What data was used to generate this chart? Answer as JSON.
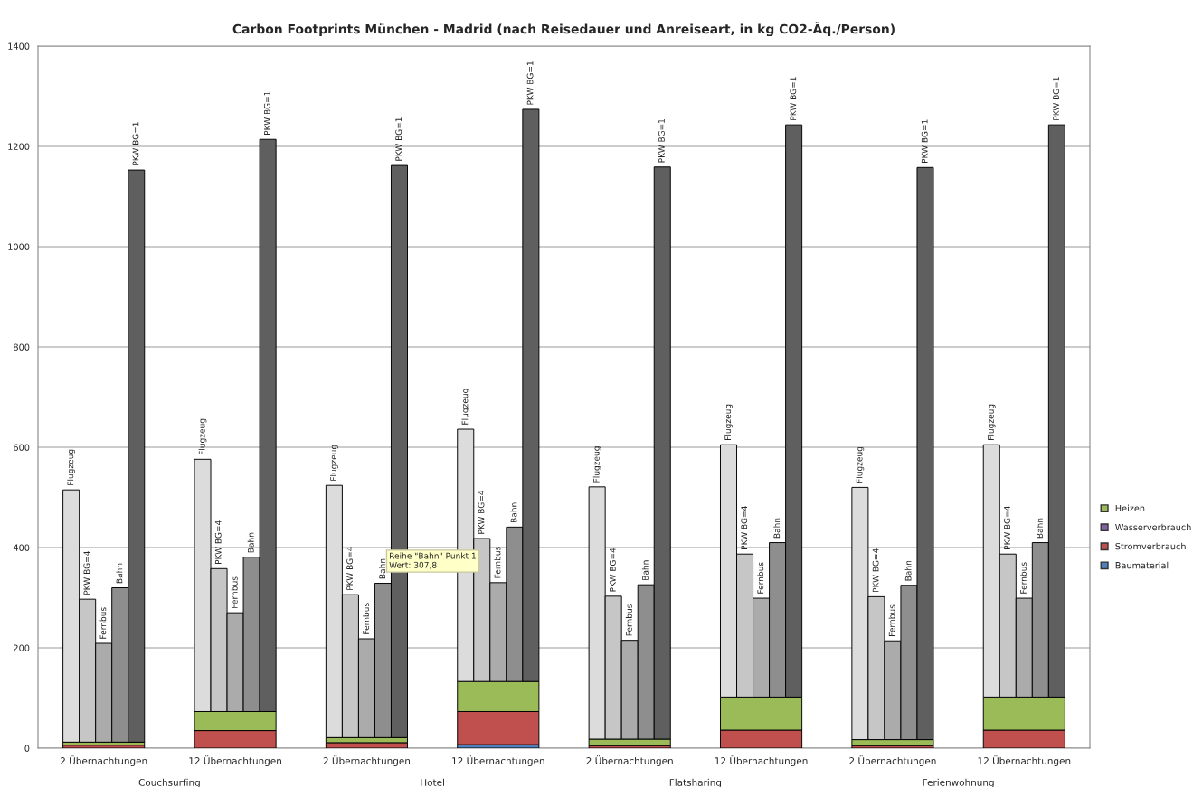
{
  "chart_data": {
    "type": "bar",
    "title": "Carbon Footprints München - Madrid (nach Reisedauer und Anreiseart, in kg CO2-Äq./Person)",
    "categories": [
      "2 Übernachtungen",
      "12 Übernachtungen",
      "2 Übernachtungen",
      "12 Übernachtungen",
      "2 Übernachtungen",
      "12 Übernachtungen",
      "2 Übernachtungen",
      "12 Übernachtungen"
    ],
    "series": [
      {
        "name": "Baumaterial",
        "color": "#4f81bd",
        "values": [
          0,
          0,
          0,
          7,
          0,
          0,
          0,
          0
        ]
      },
      {
        "name": "Stromverbrauch",
        "color": "#c0504d",
        "values": [
          6,
          35,
          11,
          66,
          5,
          36,
          5,
          36
        ],
        "base": [
          0,
          0,
          0,
          7,
          0,
          0,
          0,
          0
        ]
      },
      {
        "name": "Wasserverbrauch",
        "color": "#8064a2",
        "values": [
          0,
          0,
          0,
          0,
          0,
          0,
          0,
          0
        ]
      },
      {
        "name": "Heizen",
        "color": "#9bbb59",
        "values": [
          6,
          38,
          10,
          60,
          13,
          66,
          12,
          66
        ],
        "base": [
          6,
          35,
          11,
          73,
          5,
          36,
          5,
          36
        ]
      },
      {
        "type": "bar",
        "name": "Flugzeug",
        "color": "#dcdcdc",
        "values": [
          503,
          503,
          503,
          503,
          503,
          503,
          503,
          503
        ],
        "base": [
          12,
          73,
          21,
          133,
          18,
          102,
          17,
          102
        ]
      },
      {
        "type": "bar",
        "name": "PKW BG=4",
        "color": "#c6c6c6",
        "values": [
          285,
          285,
          285,
          285,
          285,
          285,
          285,
          285
        ],
        "base": [
          12,
          73,
          21,
          133,
          18,
          102,
          17,
          102
        ]
      },
      {
        "type": "bar",
        "name": "Fernbus",
        "color": "#ababab",
        "values": [
          197,
          197,
          197,
          197,
          197,
          197,
          197,
          197
        ],
        "base": [
          12,
          73,
          21,
          133,
          18,
          102,
          17,
          102
        ]
      },
      {
        "type": "bar",
        "name": "Bahn",
        "color": "#8e8e8e",
        "values": [
          307.8,
          307.8,
          307.8,
          307.8,
          307.8,
          307.8,
          307.8,
          307.8
        ],
        "base": [
          12,
          73,
          21,
          133,
          18,
          102,
          17,
          102
        ]
      },
      {
        "type": "bar",
        "name": "PKW BG=1",
        "color": "#5f5f5f",
        "values": [
          1141,
          1141,
          1141,
          1141,
          1141,
          1141,
          1141,
          1141
        ],
        "base": [
          12,
          73,
          21,
          133,
          18,
          102,
          17,
          102
        ]
      }
    ],
    "annotations": [
      "Couchsurfing",
      "Hotel",
      "Flatsharing",
      "Ferienwohnung",
      "Reihe \"Bahn\" Punkt 1\nWert: 307,8"
    ],
    "ylim": [
      0,
      1400
    ],
    "yticks": [
      0,
      200,
      400,
      600,
      800,
      1000,
      1200,
      1400
    ],
    "grid": "y",
    "legend": "right"
  }
}
